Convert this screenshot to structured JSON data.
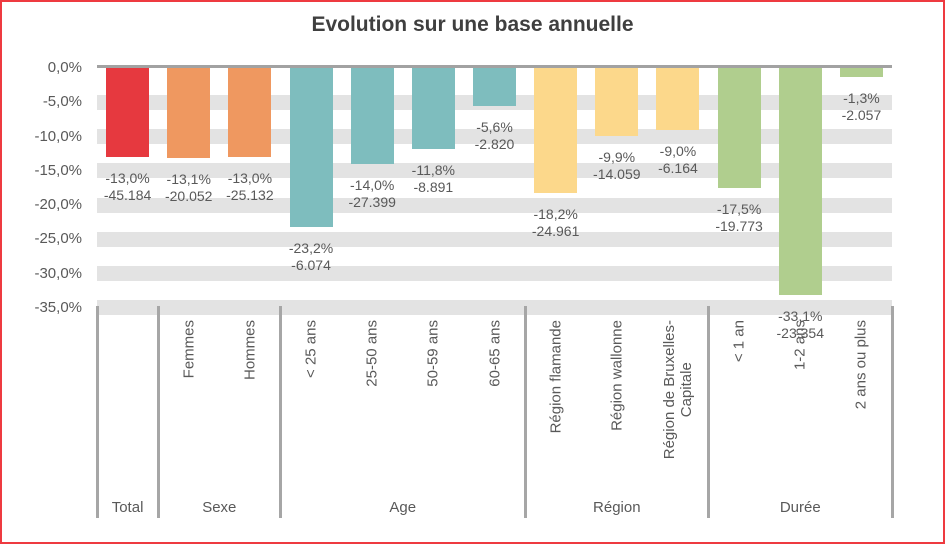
{
  "colors": {
    "border": "#ee3a40",
    "total": "#e6393f",
    "sexe": "#ef9860",
    "age": "#7ebdbe",
    "region": "#fcd88b",
    "duree": "#b0ce8e",
    "stripe": "#e3e3e3",
    "axis_line": "#a2a2a2",
    "separator": "#a6a6a6",
    "label_text": "#595959",
    "title_text": "#3f3f3f"
  },
  "y_axis": {
    "tick_labels": [
      "0,0%",
      "-5,0%",
      "-10,0%",
      "-15,0%",
      "-20,0%",
      "-25,0%",
      "-30,0%",
      "-35,0%"
    ],
    "max": 0,
    "min": -35,
    "step": 5,
    "unit": "%"
  },
  "chart_data": {
    "type": "bar",
    "title": "Evolution sur une base annuelle",
    "xlabel": "",
    "ylabel": "",
    "ylim": [
      -35,
      0
    ],
    "grid": "horizontal-stripes",
    "legend": "none",
    "value_label_format": "percent over absolute count",
    "groups": [
      {
        "label": "Total",
        "bars": [
          {
            "category": "",
            "pct": -13.0,
            "pct_label": "-13,0%",
            "abs_label": "-45.184",
            "color_key": "total"
          }
        ]
      },
      {
        "label": "Sexe",
        "bars": [
          {
            "category": "Femmes",
            "pct": -13.1,
            "pct_label": "-13,1%",
            "abs_label": "-20.052",
            "color_key": "sexe"
          },
          {
            "category": "Hommes",
            "pct": -13.0,
            "pct_label": "-13,0%",
            "abs_label": "-25.132",
            "color_key": "sexe"
          }
        ]
      },
      {
        "label": "Age",
        "bars": [
          {
            "category": "< 25 ans",
            "pct": -23.2,
            "pct_label": "-23,2%",
            "abs_label": "-6.074",
            "color_key": "age"
          },
          {
            "category": "25-50 ans",
            "pct": -14.0,
            "pct_label": "-14,0%",
            "abs_label": "-27.399",
            "color_key": "age"
          },
          {
            "category": "50-59 ans",
            "pct": -11.8,
            "pct_label": "-11,8%",
            "abs_label": "-8.891",
            "color_key": "age"
          },
          {
            "category": "60-65 ans",
            "pct": -5.6,
            "pct_label": "-5,6%",
            "abs_label": "-2.820",
            "color_key": "age"
          }
        ]
      },
      {
        "label": "Région",
        "bars": [
          {
            "category": "Région flamande",
            "pct": -18.2,
            "pct_label": "-18,2%",
            "abs_label": "-24.961",
            "color_key": "region"
          },
          {
            "category": "Région wallonne",
            "pct": -9.9,
            "pct_label": "-9,9%",
            "abs_label": "-14.059",
            "color_key": "region"
          },
          {
            "category": "Région de Bruxelles-\nCapitale",
            "pct": -9.0,
            "pct_label": "-9,0%",
            "abs_label": "-6.164",
            "color_key": "region"
          }
        ]
      },
      {
        "label": "Durée",
        "bars": [
          {
            "category": "< 1 an",
            "pct": -17.5,
            "pct_label": "-17,5%",
            "abs_label": "-19.773",
            "color_key": "duree"
          },
          {
            "category": "1-2 ans",
            "pct": -33.1,
            "pct_label": "-33,1%",
            "abs_label": "-23.354",
            "color_key": "duree"
          },
          {
            "category": "2 ans ou plus",
            "pct": -1.3,
            "pct_label": "-1,3%",
            "abs_label": "-2.057",
            "color_key": "duree"
          }
        ]
      }
    ]
  }
}
